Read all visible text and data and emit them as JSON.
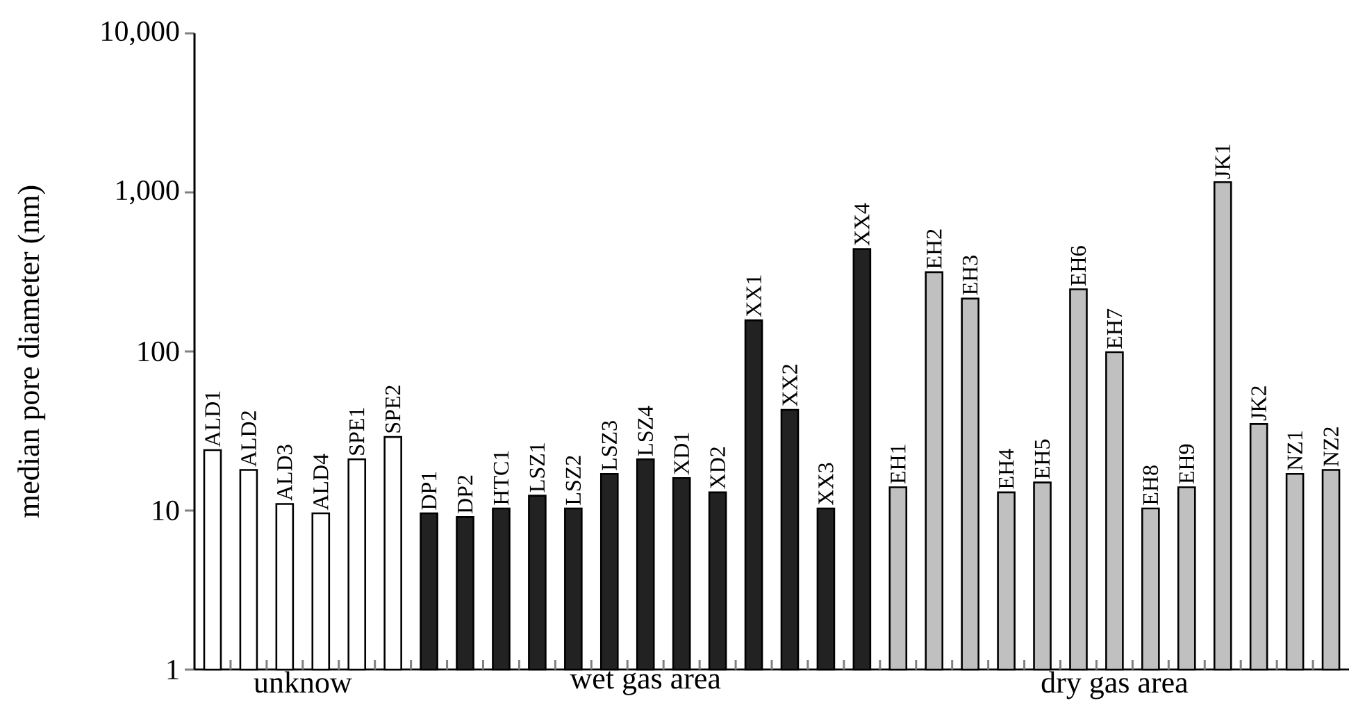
{
  "chart_data": {
    "type": "bar",
    "ylabel": "median pore diameter (nm)",
    "log": "y",
    "ylim": [
      1,
      10000
    ],
    "yticks": [
      1,
      10,
      100,
      {
        "value": 1000,
        "label": "1,000"
      },
      {
        "value": 10000,
        "label": "10,000"
      }
    ],
    "categories": [
      "ALD1",
      "ALD2",
      "ALD3",
      "ALD4",
      "SPE1",
      "SPE2",
      "DP1",
      "DP2",
      "HTC1",
      "LSZ1",
      "LSZ2",
      "LSZ3",
      "LSZ4",
      "XD1",
      "XD2",
      "XX1",
      "XX2",
      "XX3",
      "XX4",
      "EH1",
      "EH2",
      "EH3",
      "EH4",
      "EH5",
      "EH6",
      "EH7",
      "EH8",
      "EH9",
      "JK1",
      "JK2",
      "NZ1",
      "NZ2"
    ],
    "series": [
      {
        "name": "unknow",
        "color": "#ffffff",
        "values": [
          24,
          18,
          11,
          9.6,
          21,
          29,
          null,
          null,
          null,
          null,
          null,
          null,
          null,
          null,
          null,
          null,
          null,
          null,
          null,
          null,
          null,
          null,
          null,
          null,
          null,
          null,
          null,
          null,
          null,
          null,
          null,
          null
        ]
      },
      {
        "name": "wet gas area",
        "color": "#222222",
        "values": [
          null,
          null,
          null,
          null,
          null,
          null,
          9.6,
          9.1,
          10.3,
          12.4,
          10.3,
          17,
          21,
          16,
          13,
          157,
          43,
          10.3,
          440,
          null,
          null,
          null,
          null,
          null,
          null,
          null,
          null,
          null,
          null,
          null,
          null,
          null
        ]
      },
      {
        "name": "dry gas area",
        "color": "#c0c0c0",
        "values": [
          null,
          null,
          null,
          null,
          null,
          null,
          null,
          null,
          null,
          null,
          null,
          null,
          null,
          null,
          null,
          null,
          null,
          null,
          null,
          14,
          315,
          215,
          13,
          15,
          246,
          99,
          10.3,
          14,
          1160,
          35,
          17,
          18
        ]
      }
    ]
  }
}
